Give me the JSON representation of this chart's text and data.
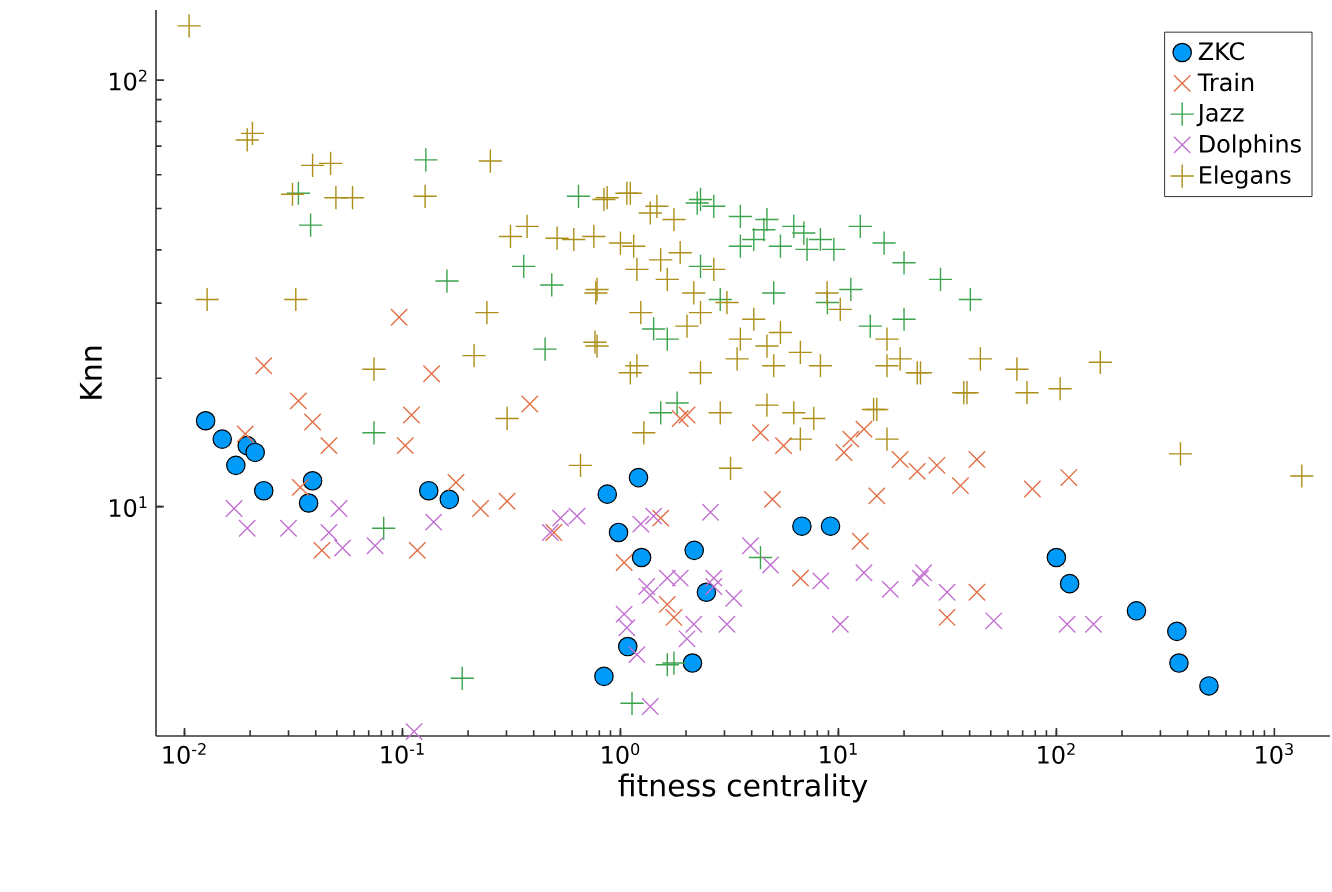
{
  "chart_data": {
    "type": "scatter",
    "xlabel": "fitness centrality",
    "ylabel": "Knn",
    "log": "xy",
    "grid": false,
    "legend": "top right",
    "xlim": [
      0.0074,
      1800
    ],
    "ylim": [
      2.9,
      146
    ],
    "xticks": [
      {
        "value": 0.01,
        "label": "10$^{-2}$"
      },
      {
        "value": 0.1,
        "label": "10$^{-1}$"
      },
      {
        "value": 1,
        "label": "10$^{0}$"
      },
      {
        "value": 10,
        "label": "10$^{1}$"
      },
      {
        "value": 100,
        "label": "10$^{2}$"
      },
      {
        "value": 1000,
        "label": "10$^{3}$"
      }
    ],
    "yticks": [
      {
        "value": 10,
        "label": "10$^{1}$"
      },
      {
        "value": 100,
        "label": "10$^{2}$"
      }
    ],
    "series": [
      {
        "name": "ZKC",
        "color": "#009af9",
        "marker": "circle",
        "x": [
          0.0125,
          0.0149,
          0.0194,
          0.0211,
          0.0172,
          0.0231,
          0.0387,
          0.0371,
          0.132,
          0.164,
          0.87,
          1.21,
          0.98,
          1.25,
          2.18,
          2.48,
          1.08,
          0.84,
          2.14,
          6.8,
          9.2,
          100,
          115,
          233,
          357,
          365,
          501
        ],
        "values": [
          15.9,
          14.4,
          13.9,
          13.4,
          12.5,
          10.9,
          11.5,
          10.2,
          10.9,
          10.4,
          10.7,
          11.7,
          8.7,
          7.6,
          7.9,
          6.3,
          4.7,
          4.0,
          4.3,
          9.0,
          9.0,
          7.6,
          6.6,
          5.7,
          5.1,
          4.3,
          3.8
        ]
      },
      {
        "name": "Train",
        "color": "#e26f46",
        "marker": "cross",
        "x": [
          0.0231,
          0.136,
          0.0333,
          0.0387,
          0.046,
          0.019,
          0.11,
          0.103,
          0.384,
          0.034,
          0.0427,
          0.117,
          0.176,
          0.228,
          0.302,
          0.495,
          1.04,
          1.53,
          1.76,
          2.02,
          0.0965,
          4.39,
          5.6,
          4.98,
          11.4,
          13.1,
          15.0,
          19.2,
          23.0,
          28.3,
          36.3,
          43.2,
          12.6,
          10.6,
          77.6,
          114,
          6.7,
          31.5,
          43.2,
          1.88,
          1.64
        ],
        "values": [
          21.4,
          20.5,
          17.7,
          15.8,
          13.9,
          14.8,
          16.4,
          13.9,
          17.4,
          11.1,
          7.9,
          7.9,
          11.4,
          9.9,
          10.3,
          8.7,
          7.4,
          9.4,
          5.5,
          16.4,
          27.8,
          14.9,
          13.9,
          10.4,
          14.4,
          15.2,
          10.6,
          12.9,
          12.1,
          12.5,
          11.2,
          12.9,
          8.3,
          13.4,
          11.0,
          11.7,
          6.8,
          5.5,
          6.3,
          16.1,
          5.9
        ]
      },
      {
        "name": "Jazz",
        "color": "#3da44d",
        "marker": "plus",
        "x": [
          0.128,
          0.0333,
          0.0379,
          0.16,
          0.484,
          0.36,
          0.642,
          0.451,
          2.25,
          0.074,
          0.082,
          0.188,
          1.13,
          1.76,
          4.39,
          1.64,
          1.42,
          12.6,
          16.2,
          20.0,
          29.4,
          40.3,
          14.0,
          20.0,
          11.4,
          8.9,
          2.33,
          2.68,
          3.55,
          4.7,
          6.24,
          8.27,
          4.09,
          5.42,
          7.18,
          9.53,
          3.55,
          4.55,
          6.94,
          5.05,
          2.87,
          1.82,
          1.53,
          1.64,
          2.33
        ],
        "values": [
          65.0,
          54.3,
          45.7,
          33.8,
          33.1,
          36.6,
          53.4,
          23.4,
          51.5,
          14.9,
          8.9,
          3.96,
          3.46,
          4.3,
          7.6,
          4.26,
          26.1,
          45.4,
          41.5,
          37.3,
          34.1,
          30.6,
          26.5,
          27.5,
          32.3,
          30.1,
          52.5,
          50.6,
          47.9,
          47.1,
          45.4,
          42.3,
          42.3,
          40.8,
          40.1,
          40.1,
          40.8,
          44.6,
          43.8,
          31.7,
          30.6,
          17.5,
          16.6,
          24.7,
          36.6
        ]
      },
      {
        "name": "Dolphins",
        "color": "#c271d2",
        "marker": "cross",
        "x": [
          0.0169,
          0.0194,
          0.03,
          0.0512,
          0.046,
          0.0531,
          0.0749,
          0.139,
          0.113,
          0.531,
          0.632,
          0.477,
          1.04,
          1.42,
          1.37,
          1.19,
          1.64,
          2.68,
          3.08,
          2.02,
          1.32,
          1.37,
          1.07,
          1.88,
          2.17,
          2.68,
          3.31,
          3.95,
          4.88,
          8.3,
          13.1,
          17.3,
          23.8,
          31.5,
          24.6,
          10.2,
          51.6,
          112,
          148,
          2.59,
          1.24
        ],
        "values": [
          9.9,
          8.9,
          8.9,
          9.9,
          8.7,
          8.0,
          8.1,
          9.2,
          2.97,
          9.4,
          9.5,
          8.7,
          5.6,
          9.5,
          3.4,
          4.5,
          6.8,
          6.8,
          5.3,
          4.9,
          6.5,
          6.2,
          5.2,
          6.8,
          5.3,
          6.5,
          6.1,
          8.1,
          7.3,
          6.7,
          7.0,
          6.4,
          6.8,
          6.3,
          7.0,
          5.3,
          5.4,
          5.3,
          5.3,
          9.7,
          9.1
        ]
      },
      {
        "name": "Elegans",
        "color": "#ac8e18",
        "marker": "plus",
        "x": [
          0.0105,
          0.0205,
          0.0194,
          0.0387,
          0.0468,
          0.0313,
          0.0495,
          0.059,
          0.127,
          0.253,
          0.0127,
          0.0324,
          0.244,
          0.074,
          0.213,
          0.771,
          0.764,
          0.373,
          0.313,
          0.512,
          0.755,
          0.869,
          1.11,
          1.0,
          1.19,
          1.19,
          1.37,
          0.611,
          0.781,
          0.84,
          1.07,
          1.47,
          1.76,
          1.15,
          1.88,
          2.68,
          1.64,
          2.17,
          2.33,
          3.08,
          4.09,
          4.7,
          5.42,
          3.55,
          5.05,
          6.69,
          8.27,
          10.2,
          8.87,
          16.7,
          19.2,
          23.8,
          38.9,
          44.8,
          1.53,
          1.24,
          0.781,
          1.11,
          2.33,
          2.87,
          1.28,
          4.7,
          6.24,
          7.71,
          14.5,
          0.656,
          3.2,
          3.43,
          2.02,
          6.69,
          0.302,
          371,
          1336,
          104,
          73.3,
          37.6,
          65.9,
          159,
          16.7,
          23.0,
          15.0,
          16.7
        ],
        "values": [
          134,
          75,
          72.4,
          63.1,
          63.8,
          54.0,
          53.0,
          53.0,
          53.4,
          64.6,
          30.6,
          30.6,
          28.5,
          21.0,
          22.6,
          31.7,
          24.3,
          45.4,
          43.0,
          42.6,
          43.0,
          53.0,
          54.3,
          41.5,
          36.0,
          21.4,
          48.8,
          42.3,
          32.3,
          52.5,
          54.3,
          50.6,
          47.1,
          40.8,
          39.4,
          36.0,
          34.1,
          31.7,
          28.5,
          30.1,
          27.5,
          23.8,
          25.6,
          24.7,
          21.4,
          23.0,
          21.4,
          29.0,
          31.7,
          24.7,
          22.2,
          20.6,
          18.5,
          22.2,
          37.9,
          28.5,
          23.8,
          20.6,
          20.6,
          16.6,
          14.9,
          17.3,
          16.6,
          16.1,
          16.9,
          12.5,
          12.3,
          22.2,
          26.5,
          14.4,
          16.1,
          13.3,
          11.8,
          18.9,
          18.5,
          18.5,
          21.0,
          21.8,
          21.4,
          20.6,
          16.9,
          14.4
        ]
      }
    ]
  }
}
